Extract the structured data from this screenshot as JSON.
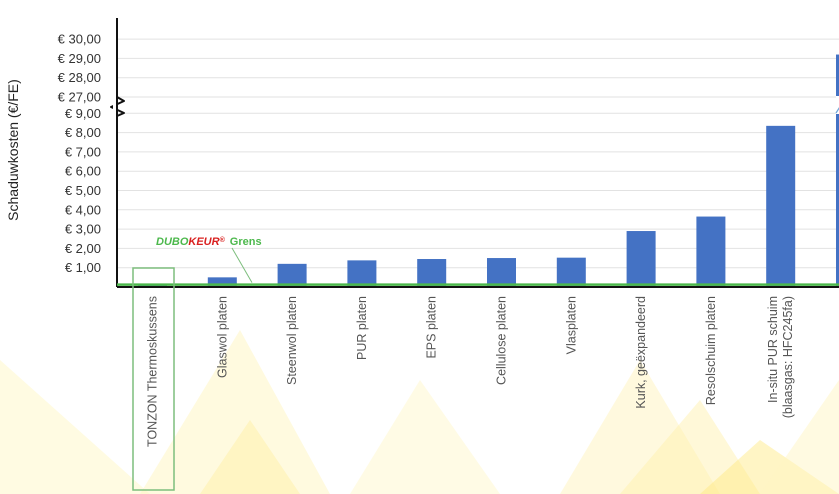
{
  "chart_data": {
    "type": "bar",
    "title": "",
    "xlabel": "",
    "ylabel": "Schaduwkosten (€/FE)",
    "categories": [
      "TONZON Thermoskussens",
      "Glaswol platen",
      "Steenwol platen",
      "PUR platen",
      "EPS platen",
      "Cellulose platen",
      "Vlasplaten",
      "Kurk, geëxpandeerd",
      "Resolschuim platen",
      "In-situ PUR schuim (blaasgas: HFC245fa)",
      ""
    ],
    "values": [
      0.08,
      0.5,
      1.2,
      1.38,
      1.45,
      1.5,
      1.52,
      2.9,
      3.65,
      8.35,
      29.2
    ],
    "y_tick_labels_lower": [
      "€ 1,00",
      "€ 2,00",
      "€ 3,00",
      "€ 4,00",
      "€ 5,00",
      "€ 6,00",
      "€ 7,00",
      "€ 8,00",
      "€ 9,00"
    ],
    "y_tick_labels_upper": [
      "€ 27,00",
      "€ 28,00",
      "€ 29,00",
      "€ 30,00"
    ],
    "ylim": [
      0,
      30
    ],
    "y_axis_break": [
      9.5,
      26.5
    ],
    "grid": true,
    "reference_line": {
      "logo_dubo": "DUBO",
      "logo_keur": "KEUR",
      "logo_reg": "®",
      "label": "Grens",
      "value": 0.15,
      "color": "#4cb84c"
    },
    "highlight_category": "TONZON Thermoskussens",
    "colors": {
      "bar": "#4472c4",
      "reference": "#4cb84c",
      "logo_red": "#d9201f",
      "highlight_box": "#7dbe7d"
    }
  }
}
